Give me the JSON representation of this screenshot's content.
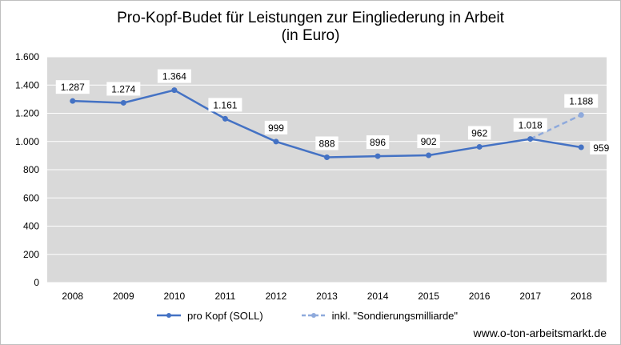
{
  "chart_data": {
    "type": "line",
    "title": "Pro-Kopf-Budet für Leistungen zur Eingliederung in Arbeit",
    "subtitle": "(in Euro)",
    "categories": [
      "2008",
      "2009",
      "2010",
      "2011",
      "2012",
      "2013",
      "2014",
      "2015",
      "2016",
      "2017",
      "2018"
    ],
    "series": [
      {
        "name": "pro Kopf (SOLL)",
        "style": "solid",
        "color": "#4472c4",
        "values": [
          1287,
          1274,
          1364,
          1161,
          999,
          888,
          896,
          902,
          962,
          1018,
          959
        ],
        "labels": [
          "1.287",
          "1.274",
          "1.364",
          "1.161",
          "999",
          "888",
          "896",
          "902",
          "962",
          "1.018",
          "959"
        ]
      },
      {
        "name": "inkl. \"Sondierungsmilliarde\"",
        "style": "dashed",
        "color": "#8faadc",
        "x": [
          "2017",
          "2018"
        ],
        "values": [
          1018,
          1188
        ],
        "labels": [
          "",
          "1.188"
        ]
      }
    ],
    "ylim": [
      0,
      1600
    ],
    "yticks": [
      0,
      200,
      400,
      600,
      800,
      1000,
      1200,
      1400,
      1600
    ],
    "ytick_labels": [
      "0",
      "200",
      "400",
      "600",
      "800",
      "1.000",
      "1.200",
      "1.400",
      "1.600"
    ],
    "grid": true,
    "legend_position": "bottom"
  },
  "footer": {
    "source": "www.o-ton-arbeitsmarkt.de"
  }
}
